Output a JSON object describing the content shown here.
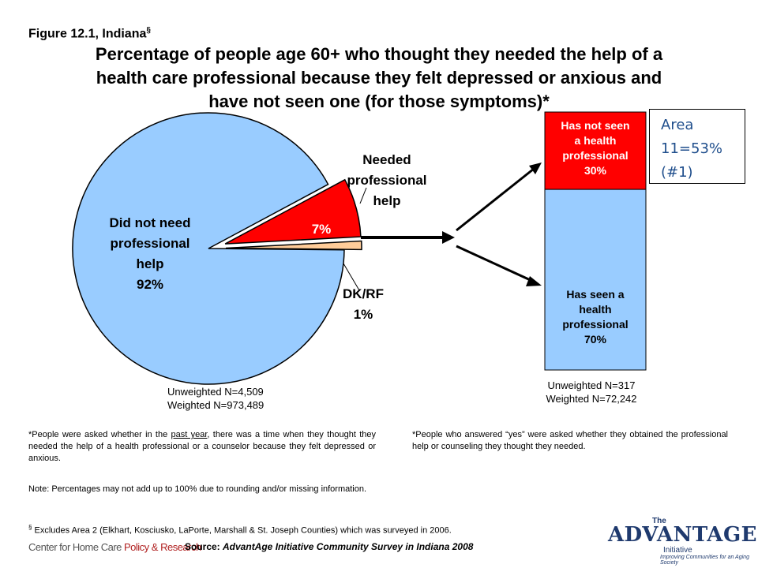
{
  "header": {
    "figure_label": "Figure 12.1, Indiana",
    "figure_mark": "§",
    "title": "Percentage of people age 60+ who thought they needed the help of a health care professional because they felt depressed or anxious and have not seen one (for those symptoms)*"
  },
  "area_box": {
    "line1": "Area",
    "line2": "11=53%",
    "line3": "(#1)"
  },
  "chart_data": [
    {
      "type": "pie",
      "slices": [
        {
          "label": "Did not need professional help",
          "value": 92,
          "display": "92%",
          "color": "#99ccff",
          "exploded": false
        },
        {
          "label": "Needed professional help",
          "value": 7,
          "display": "7%",
          "color": "#ff0000",
          "exploded": true
        },
        {
          "label": "DK/RF",
          "value": 1,
          "display": "1%",
          "color": "#ffcc99",
          "exploded": true
        }
      ],
      "labels": {
        "did_not_need_lines": [
          "Did not need",
          "professional",
          "help",
          "92%"
        ],
        "needed_lines": [
          "Needed",
          "professional",
          "help"
        ],
        "needed_value": "7%",
        "dkrf_lines": [
          "DK/RF",
          "1%"
        ]
      },
      "footer": [
        "Unweighted N=4,509",
        "Weighted N=973,489"
      ]
    },
    {
      "type": "bar",
      "stacked": true,
      "segments": [
        {
          "label": "Has not seen a health professional",
          "value": 30,
          "display": "30%",
          "color": "#ff0000",
          "text_color": "#ffffff"
        },
        {
          "label": "Has seen a health professional",
          "value": 70,
          "display": "70%",
          "color": "#99ccff",
          "text_color": "#000000"
        }
      ],
      "labels": {
        "not_seen_lines": [
          "Has not seen",
          "a health",
          "professional",
          "30%"
        ],
        "seen_lines": [
          "Has seen a",
          "health",
          "professional",
          "70%"
        ]
      },
      "footer": [
        "Unweighted N=317",
        "Weighted N=72,242"
      ]
    }
  ],
  "notes": {
    "left_footnote": "*People were asked whether in the past year, there was a time when they thought they needed the help of a health professional or a counselor because they felt depressed or anxious.",
    "left_footnote_pre": "*People were asked whether in the ",
    "left_footnote_underline": "past year",
    "left_footnote_post": ", there was a time when they thought they needed the help of a health professional or a counselor because they felt depressed or anxious.",
    "right_footnote": "*People who answered “yes” were asked whether they obtained the professional help or counseling they thought they needed.",
    "percent_note": "Note: Percentages may not add up to 100% due to rounding and/or missing information.",
    "excludes_mark": "§",
    "excludes_note": "Excludes Area 2 (Elkhart, Kosciusko, LaPorte, Marshall & St. Joseph Counties) which was surveyed in 2006."
  },
  "footer": {
    "left_logo_prefix": "Center for Home Care ",
    "left_logo_highlight": "Policy & Research",
    "source_prefix": "Source: ",
    "source_italic": "AdvantAge Initiative Community Survey in Indiana 2008",
    "right_logo_the": "The",
    "right_logo_main": "ADVANTAGE",
    "right_logo_initiative": "Initiative",
    "right_logo_tagline": "Improving Communities for an Aging Society"
  }
}
